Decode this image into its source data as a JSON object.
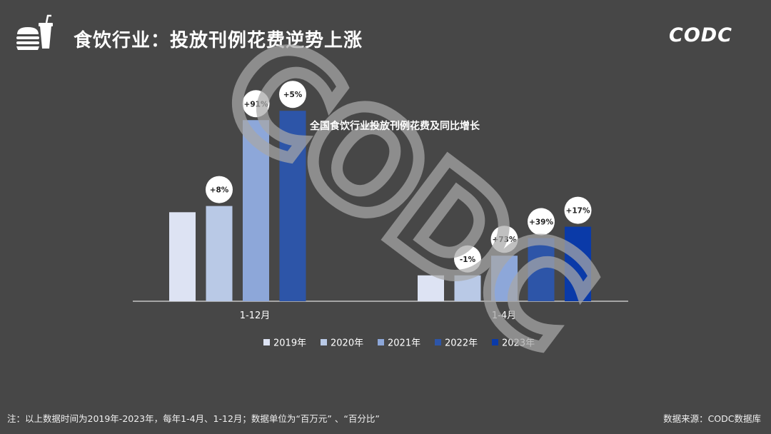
{
  "header": {
    "title": "食饮行业：投放刊例花费逆势上涨",
    "brand": "CODC",
    "icon": "fast-food-icon"
  },
  "watermark": {
    "text": "CODC",
    "color": "#a8a8a8"
  },
  "chart_data": {
    "type": "bar",
    "title": "全国食饮行业投放刊例花费及同比增长",
    "categories": [
      "1-12月",
      "1-4月"
    ],
    "series": [
      {
        "name": "2019年",
        "color": "#dde3f3",
        "values": [
          86,
          25
        ]
      },
      {
        "name": "2020年",
        "color": "#b9c9e6",
        "values": [
          92,
          25
        ]
      },
      {
        "name": "2021年",
        "color": "#8da7d9",
        "values": [
          175,
          44
        ]
      },
      {
        "name": "2022年",
        "color": "#2d55a8",
        "values": [
          184,
          61
        ]
      },
      {
        "name": "2023年",
        "color": "#0a3aa8",
        "values": [
          null,
          72
        ]
      }
    ],
    "growth_labels": [
      [
        null,
        null
      ],
      [
        "+8%",
        "-1%"
      ],
      [
        "+91%",
        "+73%"
      ],
      [
        "+5%",
        "+39%"
      ],
      [
        null,
        "+17%"
      ]
    ],
    "ylim": [
      0,
      200
    ],
    "grid": false,
    "legend_position": "bottom"
  },
  "footer": {
    "note": "注：以上数据时间为2019年-2023年，每年1-4月、1-12月；数据单位为“百万元” 、“百分比”",
    "source": "数据来源：CODC数据库"
  }
}
